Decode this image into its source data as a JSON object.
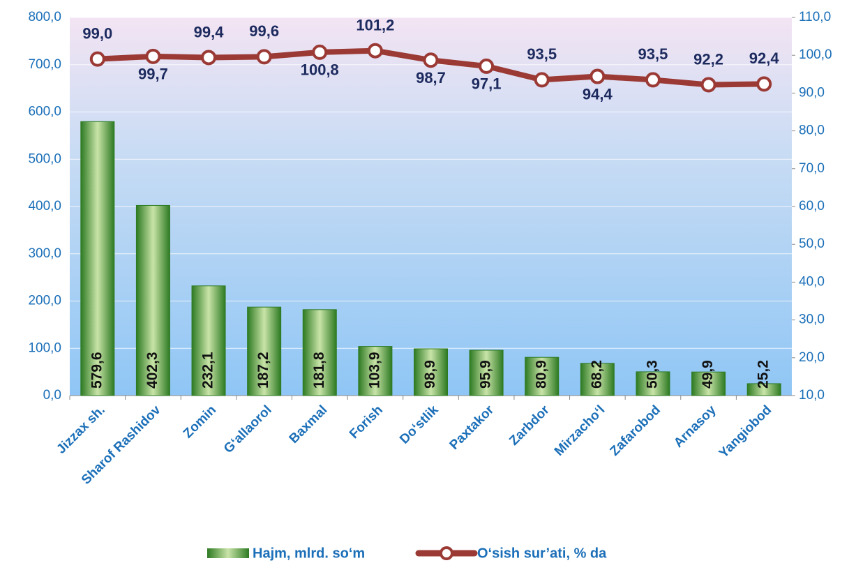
{
  "chart_data": {
    "type": "bar_line",
    "categories": [
      "Jizzax sh.",
      "Sharof Rashidov",
      "Zomin",
      "G‘allaorol",
      "Baxmal",
      "Forish",
      "Do‘stlik",
      "Paxtakor",
      "Zarbdor",
      "Mirzacho‘l",
      "Zafarobod",
      "Arnasoy",
      "Yangiobod"
    ],
    "series": [
      {
        "name": "Hajm, mlrd. so‘m",
        "color": "#2d7a22",
        "type": "bar",
        "values": [
          579.6,
          402.3,
          232.1,
          187.2,
          181.8,
          103.9,
          98.9,
          95.9,
          80.9,
          68.2,
          50.3,
          49.9,
          25.2
        ],
        "value_labels": [
          "579,6",
          "402,3",
          "232,1",
          "187,2",
          "181,8",
          "103,9",
          "98,9",
          "95,9",
          "80,9",
          "68,2",
          "50,3",
          "49,9",
          "25,2"
        ]
      },
      {
        "name": "O‘sish sur’ati, % da",
        "color": "#9b3a35",
        "type": "line",
        "axis": "y2",
        "values": [
          99.0,
          99.7,
          99.4,
          99.6,
          100.8,
          101.2,
          98.7,
          97.1,
          93.5,
          94.4,
          93.5,
          92.2,
          92.4
        ],
        "value_labels": [
          "99,0",
          "99,7",
          "99,4",
          "99,6",
          "100,8",
          "101,2",
          "98,7",
          "97,1",
          "93,5",
          "94,4",
          "93,5",
          "92,2",
          "92,4"
        ]
      }
    ],
    "ylim": [
      0,
      800
    ],
    "yticks": [
      {
        "value": 0,
        "label": "0,0"
      },
      {
        "value": 100,
        "label": "100,0"
      },
      {
        "value": 200,
        "label": "200,0"
      },
      {
        "value": 300,
        "label": "300,0"
      },
      {
        "value": 400,
        "label": "400,0"
      },
      {
        "value": 500,
        "label": "500,0"
      },
      {
        "value": 600,
        "label": "600,0"
      },
      {
        "value": 700,
        "label": "700,0"
      },
      {
        "value": 800,
        "label": "800,0"
      }
    ],
    "y2lim": [
      10,
      110
    ],
    "y2ticks": [
      {
        "value": 10,
        "label": "10,0"
      },
      {
        "value": 20,
        "label": "20,0"
      },
      {
        "value": 30,
        "label": "30,0"
      },
      {
        "value": 40,
        "label": "40,0"
      },
      {
        "value": 50,
        "label": "50,0"
      },
      {
        "value": 60,
        "label": "60,0"
      },
      {
        "value": 70,
        "label": "70,0"
      },
      {
        "value": 80,
        "label": "80,0"
      },
      {
        "value": 90,
        "label": "90,0"
      },
      {
        "value": 100,
        "label": "100,0"
      },
      {
        "value": 110,
        "label": "110,0"
      }
    ],
    "grid": true,
    "legend": "bottom"
  }
}
